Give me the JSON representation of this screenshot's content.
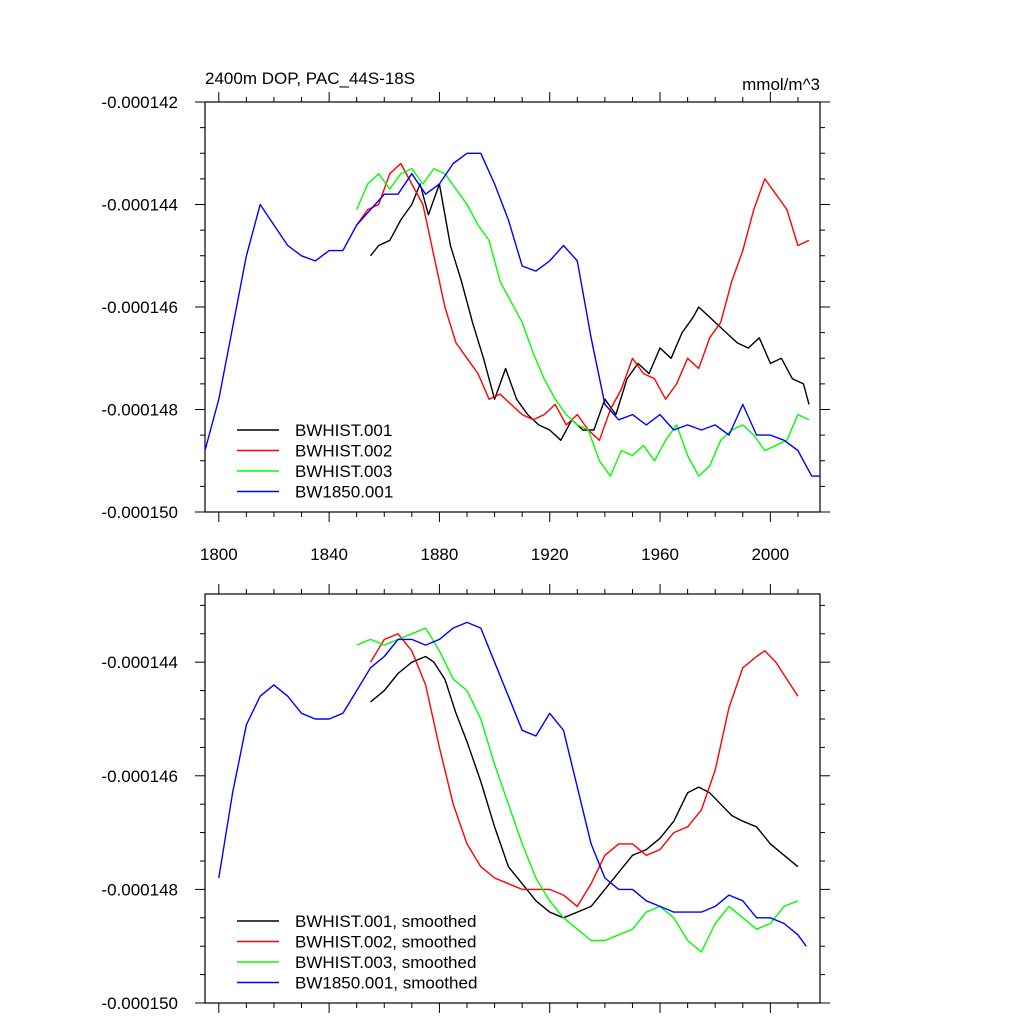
{
  "chart_data": [
    {
      "type": "line",
      "title": "2400m DOP, PAC_44S-18S",
      "units": "mmol/m^3",
      "xlim": [
        1795,
        2018
      ],
      "ylim": [
        -0.00015,
        -0.000142
      ],
      "xticks": [
        1800,
        1840,
        1880,
        1920,
        1960,
        2000
      ],
      "xtick_labels": [
        "1800",
        "1840",
        "1880",
        "1920",
        "1960",
        "2000"
      ],
      "yticks": [
        -0.00015,
        -0.000148,
        -0.000146,
        -0.000144,
        -0.000142
      ],
      "ytick_labels": [
        "-0.000150",
        "-0.000148",
        "-0.000146",
        "-0.000144",
        "-0.000142"
      ],
      "legend": "bottom-left",
      "series": [
        {
          "name": "BWHIST.001",
          "color": "#000000",
          "x": [
            1855,
            1858,
            1862,
            1866,
            1870,
            1873,
            1876,
            1880,
            1884,
            1888,
            1892,
            1896,
            1900,
            1904,
            1908,
            1912,
            1916,
            1920,
            1924,
            1928,
            1932,
            1936,
            1940,
            1944,
            1948,
            1952,
            1956,
            1960,
            1964,
            1968,
            1972,
            1974,
            1976,
            1980,
            1984,
            1988,
            1992,
            1996,
            2000,
            2004,
            2008,
            2012,
            2014
          ],
          "values": [
            -0.000145,
            -0.0001448,
            -0.0001447,
            -0.0001443,
            -0.000144,
            -0.0001436,
            -0.0001442,
            -0.0001436,
            -0.0001448,
            -0.0001455,
            -0.0001463,
            -0.000147,
            -0.0001478,
            -0.0001472,
            -0.0001478,
            -0.0001481,
            -0.0001483,
            -0.0001484,
            -0.0001486,
            -0.0001482,
            -0.0001484,
            -0.0001484,
            -0.0001478,
            -0.0001481,
            -0.0001474,
            -0.0001471,
            -0.0001473,
            -0.0001468,
            -0.000147,
            -0.0001465,
            -0.0001462,
            -0.000146,
            -0.0001461,
            -0.0001463,
            -0.0001465,
            -0.0001467,
            -0.0001468,
            -0.0001466,
            -0.0001471,
            -0.000147,
            -0.0001474,
            -0.0001475,
            -0.0001479
          ]
        },
        {
          "name": "BWHIST.002",
          "color": "#ff0000",
          "x": [
            1850,
            1854,
            1858,
            1862,
            1866,
            1870,
            1874,
            1878,
            1882,
            1886,
            1890,
            1894,
            1898,
            1902,
            1906,
            1910,
            1914,
            1918,
            1922,
            1926,
            1930,
            1934,
            1938,
            1942,
            1946,
            1950,
            1954,
            1958,
            1962,
            1966,
            1970,
            1974,
            1978,
            1982,
            1986,
            1990,
            1994,
            1998,
            2002,
            2006,
            2010,
            2014
          ],
          "values": [
            -0.0001444,
            -0.0001441,
            -0.000144,
            -0.0001434,
            -0.0001432,
            -0.0001436,
            -0.000144,
            -0.000145,
            -0.000146,
            -0.0001467,
            -0.000147,
            -0.0001473,
            -0.0001478,
            -0.0001477,
            -0.0001479,
            -0.0001481,
            -0.0001482,
            -0.0001481,
            -0.0001479,
            -0.0001483,
            -0.0001481,
            -0.0001484,
            -0.0001486,
            -0.000148,
            -0.0001476,
            -0.000147,
            -0.0001473,
            -0.0001474,
            -0.0001478,
            -0.0001475,
            -0.000147,
            -0.0001472,
            -0.0001466,
            -0.0001463,
            -0.0001455,
            -0.0001449,
            -0.0001441,
            -0.0001435,
            -0.0001438,
            -0.0001441,
            -0.0001448,
            -0.0001447
          ]
        },
        {
          "name": "BWHIST.003",
          "color": "#00ff00",
          "x": [
            1850,
            1854,
            1858,
            1862,
            1866,
            1870,
            1874,
            1878,
            1882,
            1886,
            1890,
            1894,
            1898,
            1902,
            1906,
            1910,
            1914,
            1918,
            1922,
            1926,
            1930,
            1934,
            1938,
            1942,
            1946,
            1950,
            1954,
            1958,
            1962,
            1966,
            1970,
            1974,
            1978,
            1982,
            1986,
            1990,
            1994,
            1998,
            2002,
            2006,
            2010,
            2014
          ],
          "values": [
            -0.0001441,
            -0.0001436,
            -0.0001434,
            -0.0001437,
            -0.0001434,
            -0.0001433,
            -0.0001436,
            -0.0001433,
            -0.0001434,
            -0.0001437,
            -0.000144,
            -0.0001444,
            -0.0001447,
            -0.0001455,
            -0.0001459,
            -0.0001463,
            -0.0001469,
            -0.0001474,
            -0.0001478,
            -0.0001481,
            -0.0001483,
            -0.0001484,
            -0.000149,
            -0.0001493,
            -0.0001488,
            -0.0001489,
            -0.0001487,
            -0.000149,
            -0.0001486,
            -0.0001483,
            -0.0001489,
            -0.0001493,
            -0.0001491,
            -0.0001486,
            -0.0001484,
            -0.0001483,
            -0.0001485,
            -0.0001488,
            -0.0001487,
            -0.0001486,
            -0.0001481,
            -0.0001482
          ]
        },
        {
          "name": "BW1850.001",
          "color": "#0000ff",
          "x": [
            1795,
            1800,
            1805,
            1810,
            1815,
            1820,
            1825,
            1830,
            1835,
            1840,
            1845,
            1850,
            1855,
            1860,
            1865,
            1870,
            1875,
            1880,
            1885,
            1890,
            1895,
            1900,
            1905,
            1910,
            1915,
            1920,
            1925,
            1930,
            1935,
            1940,
            1945,
            1950,
            1955,
            1960,
            1965,
            1970,
            1975,
            1980,
            1985,
            1990,
            1995,
            2000,
            2005,
            2010,
            2015,
            2018
          ],
          "values": [
            -0.0001488,
            -0.0001478,
            -0.0001464,
            -0.000145,
            -0.000144,
            -0.0001444,
            -0.0001448,
            -0.000145,
            -0.0001451,
            -0.0001449,
            -0.0001449,
            -0.0001444,
            -0.0001441,
            -0.0001438,
            -0.0001438,
            -0.0001434,
            -0.0001438,
            -0.0001436,
            -0.0001432,
            -0.000143,
            -0.000143,
            -0.0001436,
            -0.0001443,
            -0.0001452,
            -0.0001453,
            -0.0001451,
            -0.0001448,
            -0.0001451,
            -0.0001466,
            -0.0001479,
            -0.0001482,
            -0.0001481,
            -0.0001483,
            -0.0001481,
            -0.0001484,
            -0.0001483,
            -0.0001484,
            -0.0001483,
            -0.0001485,
            -0.0001479,
            -0.0001485,
            -0.0001485,
            -0.0001486,
            -0.0001488,
            -0.0001493,
            -0.0001493
          ]
        }
      ]
    },
    {
      "type": "line",
      "title": "",
      "units": "",
      "xlim": [
        1795,
        2018
      ],
      "ylim": [
        -0.00015,
        -0.0001428
      ],
      "xticks": [
        1800,
        1840,
        1880,
        1920,
        1960,
        2000
      ],
      "xtick_labels": [],
      "yticks": [
        -0.00015,
        -0.000148,
        -0.000146,
        -0.000144
      ],
      "ytick_labels": [
        "-0.000150",
        "-0.000148",
        "-0.000146",
        "-0.000144"
      ],
      "legend": "bottom-left",
      "series": [
        {
          "name": "BWHIST.001, smoothed",
          "color": "#000000",
          "x": [
            1855,
            1860,
            1865,
            1870,
            1875,
            1878,
            1882,
            1886,
            1890,
            1895,
            1900,
            1905,
            1910,
            1915,
            1920,
            1925,
            1930,
            1935,
            1940,
            1945,
            1950,
            1955,
            1960,
            1965,
            1970,
            1974,
            1978,
            1982,
            1986,
            1990,
            1995,
            2000,
            2005,
            2010
          ],
          "values": [
            -0.0001447,
            -0.0001445,
            -0.0001442,
            -0.000144,
            -0.0001439,
            -0.000144,
            -0.0001443,
            -0.0001449,
            -0.0001454,
            -0.0001461,
            -0.0001469,
            -0.0001476,
            -0.0001479,
            -0.0001482,
            -0.0001484,
            -0.0001485,
            -0.0001484,
            -0.0001483,
            -0.000148,
            -0.0001477,
            -0.0001474,
            -0.0001473,
            -0.0001471,
            -0.0001468,
            -0.0001463,
            -0.0001462,
            -0.0001463,
            -0.0001465,
            -0.0001467,
            -0.0001468,
            -0.0001469,
            -0.0001472,
            -0.0001474,
            -0.0001476
          ]
        },
        {
          "name": "BWHIST.002, smoothed",
          "color": "#ff0000",
          "x": [
            1855,
            1860,
            1865,
            1870,
            1875,
            1880,
            1885,
            1890,
            1895,
            1900,
            1905,
            1910,
            1915,
            1920,
            1925,
            1930,
            1935,
            1940,
            1945,
            1950,
            1955,
            1960,
            1965,
            1970,
            1975,
            1980,
            1985,
            1990,
            1995,
            1998,
            2002,
            2006,
            2010
          ],
          "values": [
            -0.000144,
            -0.0001436,
            -0.0001435,
            -0.0001438,
            -0.0001444,
            -0.0001455,
            -0.0001465,
            -0.0001472,
            -0.0001476,
            -0.0001478,
            -0.0001479,
            -0.000148,
            -0.000148,
            -0.000148,
            -0.0001481,
            -0.0001483,
            -0.0001479,
            -0.0001474,
            -0.0001472,
            -0.0001472,
            -0.0001474,
            -0.0001473,
            -0.000147,
            -0.0001469,
            -0.0001466,
            -0.0001459,
            -0.0001448,
            -0.0001441,
            -0.0001439,
            -0.0001438,
            -0.000144,
            -0.0001443,
            -0.0001446
          ]
        },
        {
          "name": "BWHIST.003, smoothed",
          "color": "#00ff00",
          "x": [
            1850,
            1855,
            1860,
            1865,
            1870,
            1875,
            1880,
            1885,
            1890,
            1895,
            1900,
            1905,
            1910,
            1915,
            1920,
            1925,
            1930,
            1935,
            1940,
            1945,
            1950,
            1955,
            1960,
            1965,
            1970,
            1975,
            1980,
            1985,
            1990,
            1995,
            2000,
            2005,
            2010
          ],
          "values": [
            -0.0001437,
            -0.0001436,
            -0.0001437,
            -0.0001436,
            -0.0001435,
            -0.0001434,
            -0.0001438,
            -0.0001443,
            -0.0001445,
            -0.000145,
            -0.0001458,
            -0.0001465,
            -0.0001472,
            -0.0001478,
            -0.0001482,
            -0.0001485,
            -0.0001487,
            -0.0001489,
            -0.0001489,
            -0.0001488,
            -0.0001487,
            -0.0001484,
            -0.0001483,
            -0.0001485,
            -0.0001489,
            -0.0001491,
            -0.0001486,
            -0.0001483,
            -0.0001485,
            -0.0001487,
            -0.0001486,
            -0.0001483,
            -0.0001482
          ]
        },
        {
          "name": "BW1850.001, smoothed",
          "color": "#0000ff",
          "x": [
            1800,
            1805,
            1810,
            1815,
            1820,
            1825,
            1830,
            1835,
            1840,
            1845,
            1850,
            1855,
            1860,
            1865,
            1870,
            1875,
            1880,
            1885,
            1890,
            1895,
            1900,
            1905,
            1910,
            1915,
            1920,
            1925,
            1930,
            1935,
            1940,
            1945,
            1950,
            1955,
            1960,
            1965,
            1970,
            1975,
            1980,
            1985,
            1990,
            1995,
            2000,
            2005,
            2010,
            2013
          ],
          "values": [
            -0.0001478,
            -0.0001463,
            -0.0001451,
            -0.0001446,
            -0.0001444,
            -0.0001446,
            -0.0001449,
            -0.000145,
            -0.000145,
            -0.0001449,
            -0.0001445,
            -0.0001441,
            -0.0001439,
            -0.0001436,
            -0.0001436,
            -0.0001437,
            -0.0001436,
            -0.0001434,
            -0.0001433,
            -0.0001434,
            -0.000144,
            -0.0001446,
            -0.0001452,
            -0.0001453,
            -0.0001449,
            -0.0001452,
            -0.0001462,
            -0.0001472,
            -0.0001478,
            -0.000148,
            -0.000148,
            -0.0001482,
            -0.0001483,
            -0.0001484,
            -0.0001484,
            -0.0001484,
            -0.0001483,
            -0.0001481,
            -0.0001482,
            -0.0001485,
            -0.0001485,
            -0.0001486,
            -0.0001488,
            -0.000149
          ]
        }
      ]
    }
  ]
}
